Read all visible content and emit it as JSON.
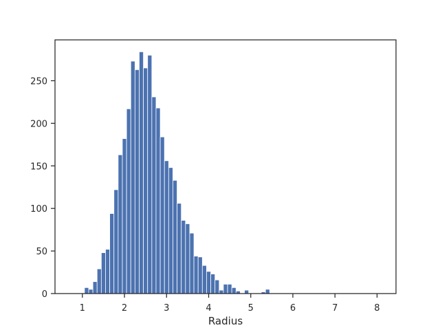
{
  "chart_data": {
    "type": "bar",
    "title": "",
    "xlabel": "Radius",
    "ylabel": "",
    "xlim": [
      0.35,
      8.45
    ],
    "ylim": [
      0,
      298
    ],
    "xticks": [
      1,
      2,
      3,
      4,
      5,
      6,
      7,
      8
    ],
    "yticks": [
      0,
      50,
      100,
      150,
      200,
      250
    ],
    "grid": false,
    "legend": "none",
    "bar_color": "#4c72b0",
    "bin_start": 1.05,
    "bin_width": 0.1,
    "counts": [
      7,
      5,
      14,
      29,
      48,
      52,
      94,
      122,
      163,
      182,
      217,
      273,
      263,
      284,
      265,
      280,
      231,
      218,
      184,
      156,
      148,
      133,
      106,
      86,
      82,
      71,
      44,
      43,
      33,
      26,
      23,
      16,
      4,
      11,
      11,
      7,
      3,
      0,
      4,
      0,
      0,
      0,
      2,
      5
    ]
  }
}
